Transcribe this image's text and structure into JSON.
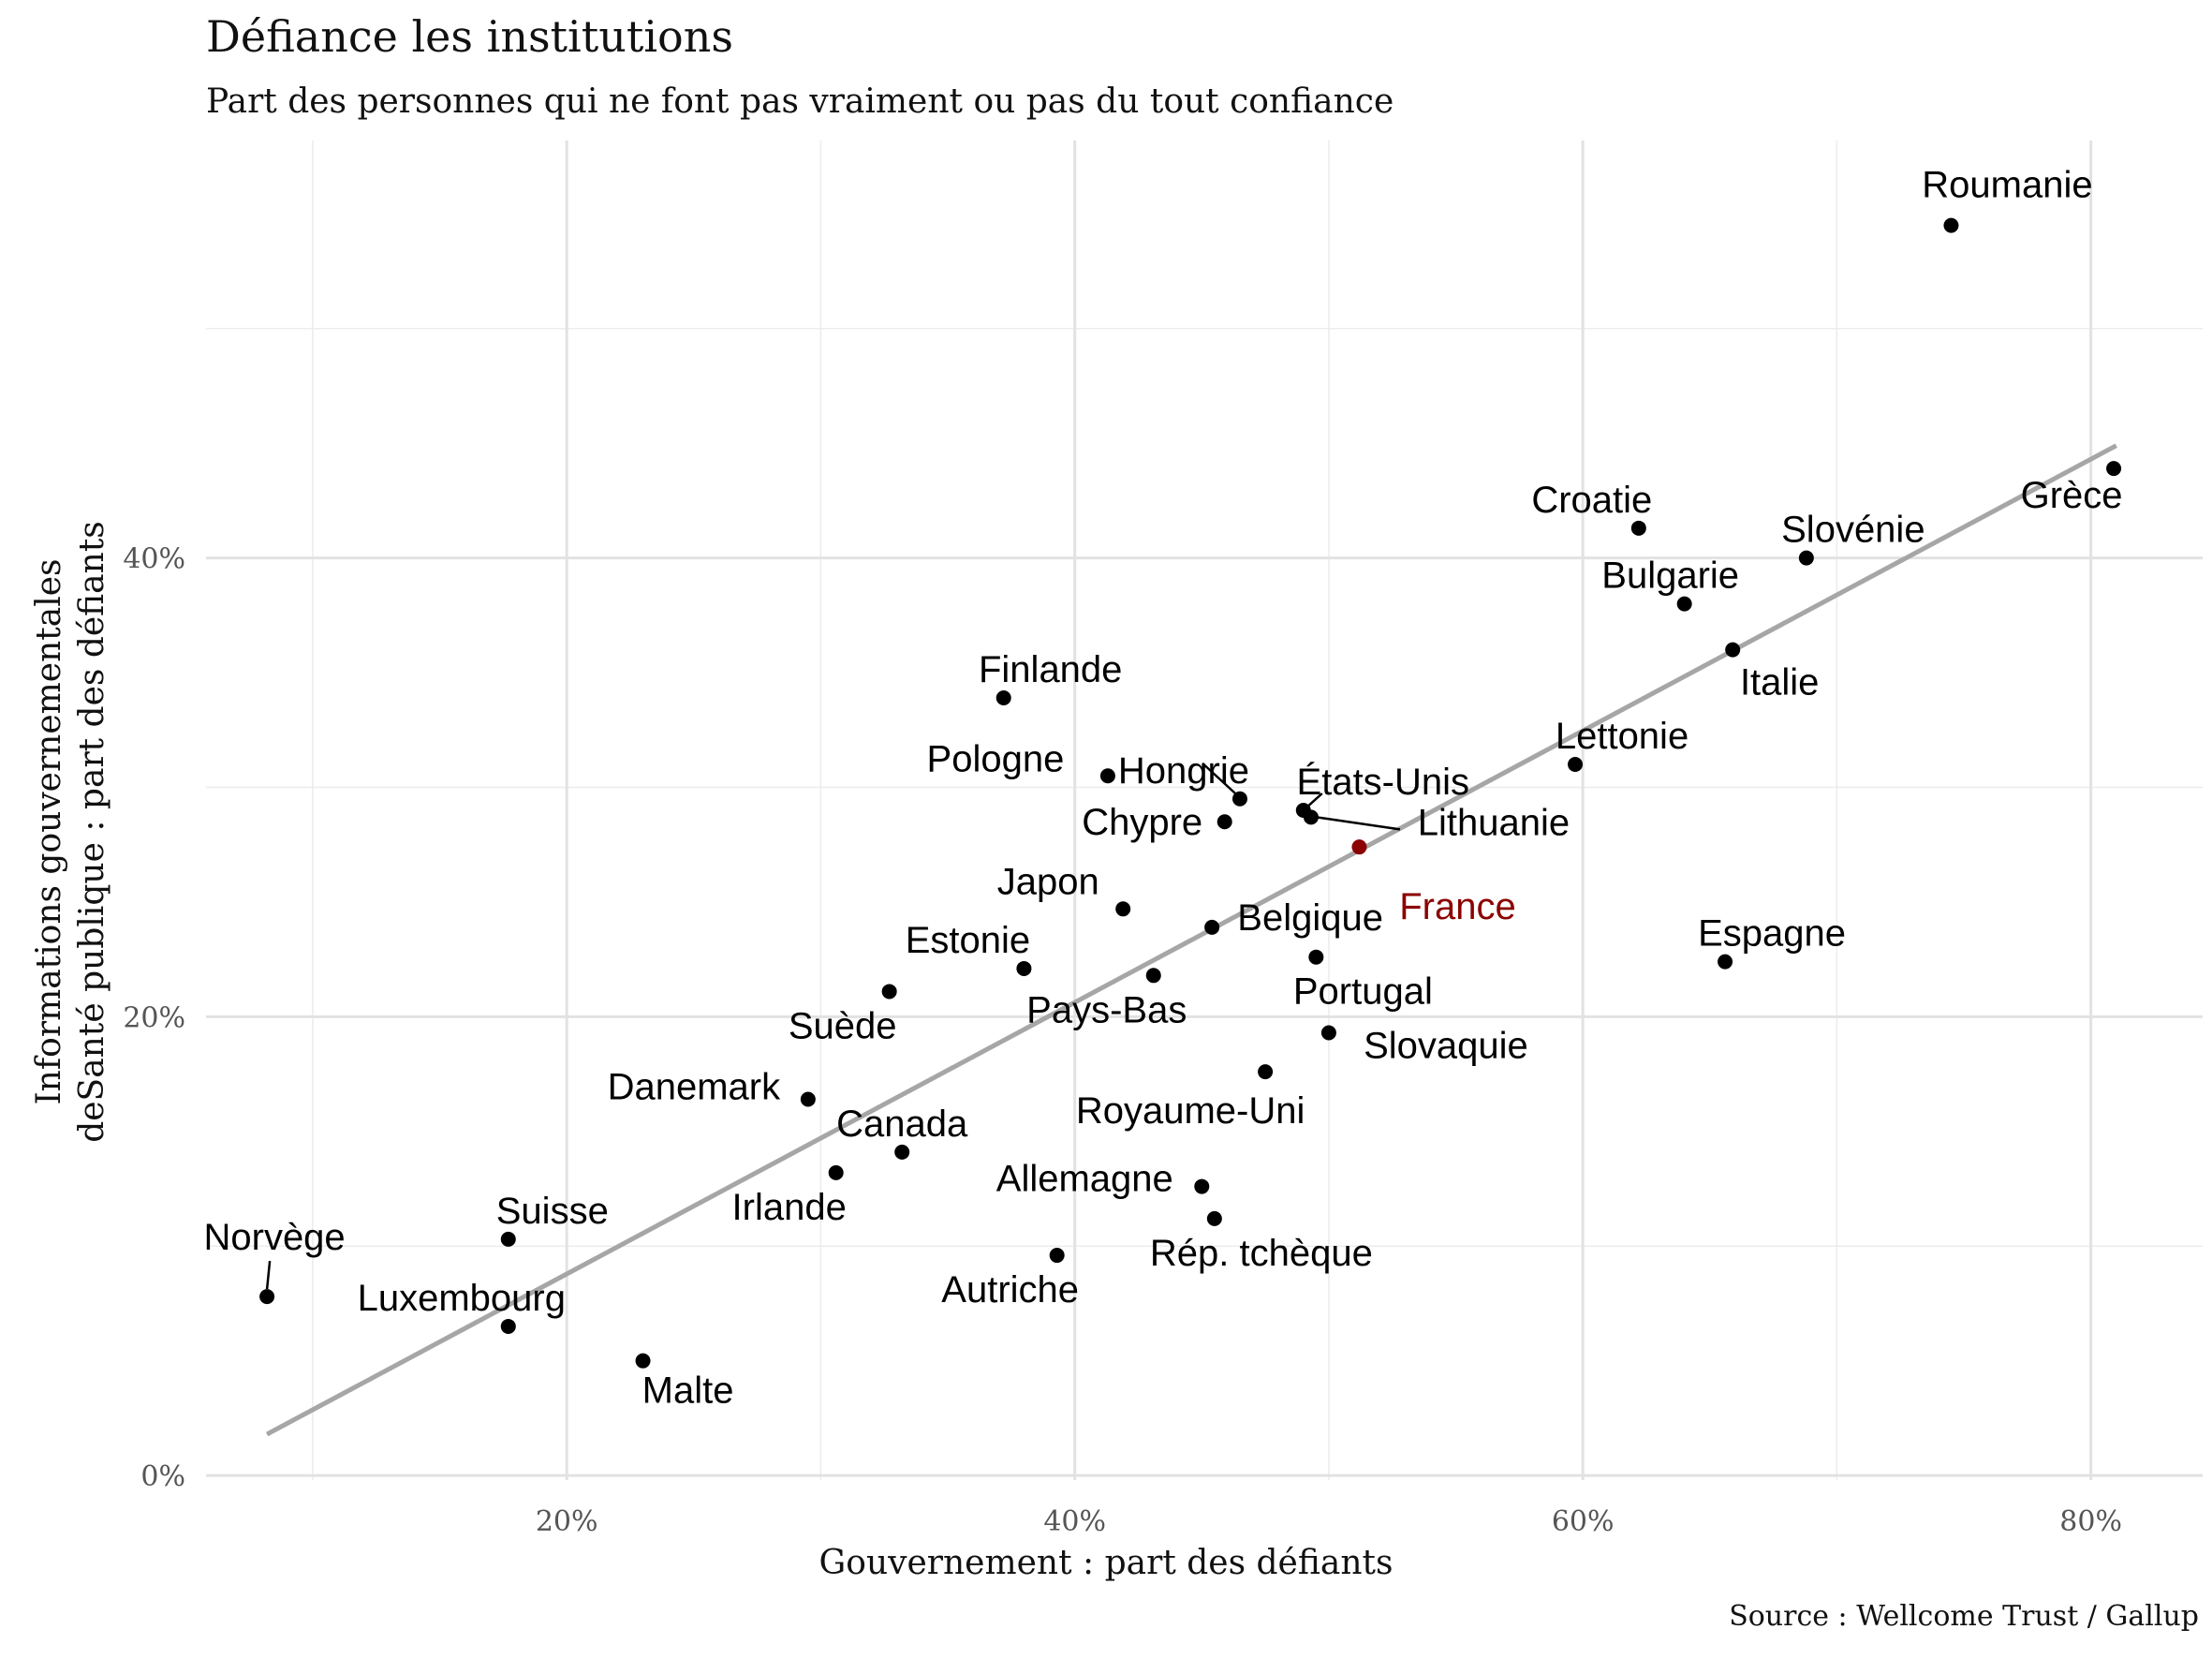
{
  "title": "Défiance les institutions",
  "subtitle": "Part des personnes qui ne font pas vraiment ou pas du tout confiance",
  "caption": "Source : Wellcome Trust / Gallup",
  "chart_data": {
    "type": "scatter",
    "xlabel": "Gouvernement : part des défiants",
    "ylabel_lines": [
      "Informations gouvernementales",
      "deSanté publique : part des défiants"
    ],
    "xlim": [
      0.058,
      0.844
    ],
    "ylim": [
      -0.002,
      0.582
    ],
    "x_ticks": [
      0.2,
      0.4,
      0.6,
      0.8
    ],
    "x_tick_labels": [
      "20%",
      "40%",
      "60%",
      "80%"
    ],
    "y_ticks": [
      0.0,
      0.2,
      0.4
    ],
    "y_tick_labels": [
      "0%",
      "20%",
      "40%"
    ],
    "grid": true,
    "highlight_color": "#8b0000",
    "point_color": "#000000",
    "trend_color": "#a6a6a6",
    "trend_line": {
      "x": [
        0.082,
        0.81
      ],
      "y": [
        0.018,
        0.449
      ]
    },
    "points": [
      {
        "name": "Roumanie",
        "x": 0.745,
        "y": 0.545
      },
      {
        "name": "Grèce",
        "x": 0.809,
        "y": 0.439
      },
      {
        "name": "Croatie",
        "x": 0.622,
        "y": 0.413
      },
      {
        "name": "Slovénie",
        "x": 0.688,
        "y": 0.4
      },
      {
        "name": "Bulgarie",
        "x": 0.64,
        "y": 0.38
      },
      {
        "name": "Italie",
        "x": 0.659,
        "y": 0.36
      },
      {
        "name": "Lettonie",
        "x": 0.597,
        "y": 0.31
      },
      {
        "name": "Finlande",
        "x": 0.372,
        "y": 0.339
      },
      {
        "name": "Pologne",
        "x": 0.413,
        "y": 0.305
      },
      {
        "name": "Hongrie",
        "x": 0.465,
        "y": 0.295
      },
      {
        "name": "États-Unis",
        "x": 0.49,
        "y": 0.29
      },
      {
        "name": "Lithuanie",
        "x": 0.493,
        "y": 0.287
      },
      {
        "name": "Chypre",
        "x": 0.459,
        "y": 0.285
      },
      {
        "name": "France",
        "x": 0.512,
        "y": 0.274,
        "highlight": true
      },
      {
        "name": "Japon",
        "x": 0.419,
        "y": 0.247
      },
      {
        "name": "Belgique",
        "x": 0.454,
        "y": 0.239
      },
      {
        "name": "Espagne",
        "x": 0.656,
        "y": 0.224
      },
      {
        "name": "Estonie",
        "x": 0.38,
        "y": 0.221
      },
      {
        "name": "Portugal",
        "x": 0.495,
        "y": 0.226
      },
      {
        "name": "Pays-Bas",
        "x": 0.431,
        "y": 0.218
      },
      {
        "name": "Suède",
        "x": 0.327,
        "y": 0.211
      },
      {
        "name": "Slovaquie",
        "x": 0.5,
        "y": 0.193
      },
      {
        "name": "Royaume-Uni",
        "x": 0.475,
        "y": 0.176
      },
      {
        "name": "Danemark",
        "x": 0.295,
        "y": 0.164
      },
      {
        "name": "Canada",
        "x": 0.332,
        "y": 0.141
      },
      {
        "name": "Irlande",
        "x": 0.306,
        "y": 0.132
      },
      {
        "name": "Allemagne",
        "x": 0.45,
        "y": 0.126
      },
      {
        "name": "Rép. tchèque",
        "x": 0.455,
        "y": 0.112
      },
      {
        "name": "Autriche",
        "x": 0.393,
        "y": 0.096
      },
      {
        "name": "Suisse",
        "x": 0.177,
        "y": 0.103
      },
      {
        "name": "Norvège",
        "x": 0.082,
        "y": 0.078
      },
      {
        "name": "Luxembourg",
        "x": 0.177,
        "y": 0.065
      },
      {
        "name": "Malte",
        "x": 0.23,
        "y": 0.05
      }
    ]
  }
}
